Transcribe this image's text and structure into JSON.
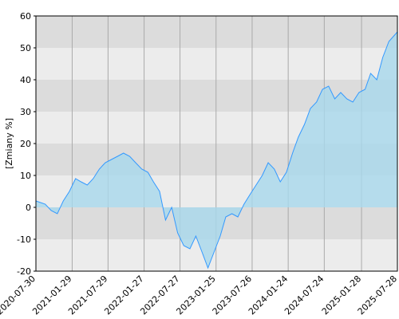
{
  "chart_data": {
    "type": "area",
    "y_label": "[Zmiany %]",
    "x": [
      "2020-07-30",
      "2020-09-15",
      "2020-10-15",
      "2020-11-15",
      "2020-12-15",
      "2021-01-15",
      "2021-02-15",
      "2021-03-15",
      "2021-04-15",
      "2021-05-15",
      "2021-06-15",
      "2021-07-15",
      "2021-08-15",
      "2021-09-15",
      "2021-10-15",
      "2021-11-15",
      "2021-12-15",
      "2022-01-15",
      "2022-02-15",
      "2022-03-15",
      "2022-04-15",
      "2022-05-15",
      "2022-06-15",
      "2022-07-15",
      "2022-08-15",
      "2022-09-15",
      "2022-10-15",
      "2022-11-15",
      "2022-12-15",
      "2023-01-15",
      "2023-02-15",
      "2023-03-15",
      "2023-04-15",
      "2023-05-15",
      "2023-06-15",
      "2023-07-15",
      "2023-08-15",
      "2023-09-15",
      "2023-10-15",
      "2023-11-15",
      "2023-12-15",
      "2024-01-15",
      "2024-02-15",
      "2024-03-15",
      "2024-04-15",
      "2024-05-15",
      "2024-06-15",
      "2024-07-15",
      "2024-08-15",
      "2024-09-15",
      "2024-10-15",
      "2024-11-15",
      "2024-12-15",
      "2025-01-15",
      "2025-02-15",
      "2025-03-15",
      "2025-04-15",
      "2025-05-15",
      "2025-06-15",
      "2025-07-28"
    ],
    "series": [
      {
        "color": "#3399ff",
        "fill": "#a8d8ec",
        "values": [
          2,
          1,
          -1,
          -2,
          2,
          5,
          9,
          8,
          7,
          9,
          12,
          14,
          15,
          16,
          17,
          16,
          14,
          12,
          11,
          8,
          5,
          -4,
          0,
          -8,
          -12,
          -13,
          -9,
          -14,
          -19,
          -14,
          -9,
          -3,
          -2,
          -3,
          1,
          4,
          7,
          10,
          14,
          12,
          8,
          11,
          17,
          22,
          26,
          31,
          33,
          37,
          38,
          34,
          36,
          34,
          33,
          36,
          37,
          42,
          40,
          47,
          52,
          55
        ]
      }
    ],
    "xlim": [
      "2020-07-30",
      "2025-07-28"
    ],
    "xticks": [
      "2020-07-30",
      "2021-01-29",
      "2021-07-29",
      "2022-01-27",
      "2022-07-27",
      "2023-01-25",
      "2023-07-26",
      "2024-01-24",
      "2024-07-24",
      "2025-01-28",
      "2025-07-28"
    ],
    "ylim": [
      -20,
      60
    ],
    "yticks": [
      -20,
      -10,
      0,
      10,
      20,
      30,
      40,
      50,
      60
    ],
    "band_colors": [
      "#dcdcdc",
      "#ececec"
    ],
    "grid_color": "#aaaaaa"
  }
}
